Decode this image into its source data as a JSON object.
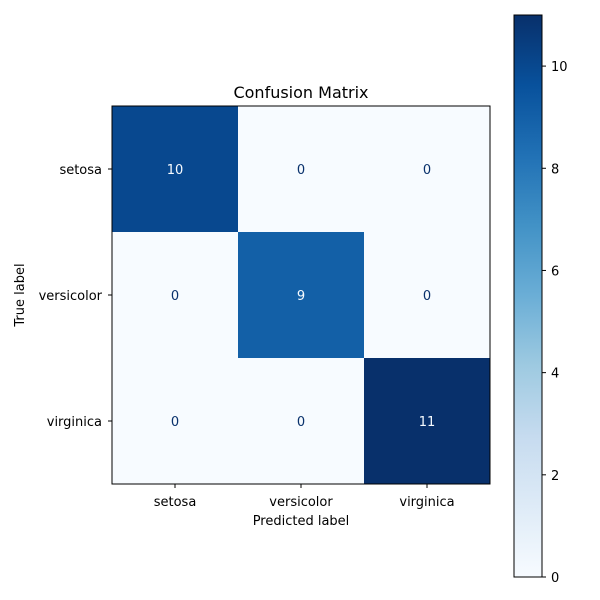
{
  "chart_data": {
    "type": "heatmap",
    "title": "Confusion Matrix",
    "xlabel": "Predicted label",
    "ylabel": "True label",
    "x_categories": [
      "setosa",
      "versicolor",
      "virginica"
    ],
    "y_categories": [
      "setosa",
      "versicolor",
      "virginica"
    ],
    "values": [
      [
        10,
        0,
        0
      ],
      [
        0,
        9,
        0
      ],
      [
        0,
        0,
        11
      ]
    ],
    "colorbar": {
      "min": 0,
      "max": 11,
      "ticks": [
        0,
        2,
        4,
        6,
        8,
        10
      ],
      "colormap": "Blues"
    },
    "colors": {
      "low": "#f7fbff",
      "high": "#08306b",
      "text_on_dark": "#f7fbff",
      "text_on_light": "#08306b"
    },
    "grid": false
  }
}
